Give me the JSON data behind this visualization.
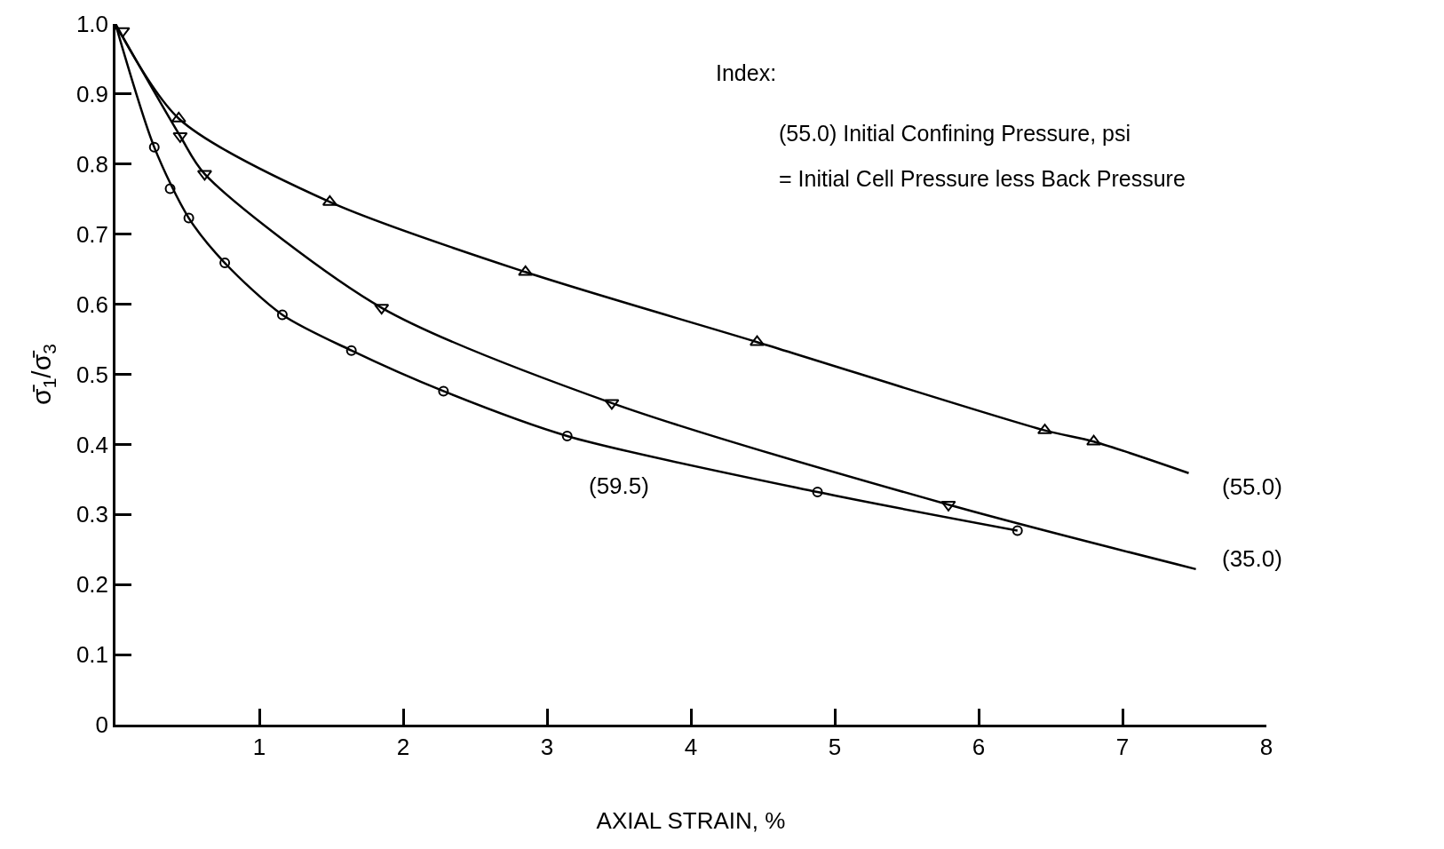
{
  "chart_data": {
    "type": "line",
    "xlabel": "AXIAL STRAIN, %",
    "ylabel": "σ̄$_{1}$/σ̄$_{3}$",
    "xlim": [
      0,
      8
    ],
    "xticks": [
      {
        "value": 0,
        "label": null
      },
      1,
      2,
      3,
      4,
      5,
      6,
      7,
      8
    ],
    "ylim": [
      0,
      1.0
    ],
    "yticks": [
      0,
      0.1,
      0.2,
      0.3,
      0.4,
      0.5,
      0.6,
      0.7,
      0.8,
      0.9,
      {
        "value": 1.0,
        "label": "1.0"
      }
    ],
    "series": [
      {
        "color": "#000000",
        "x": [
          0,
          0.27,
          0.51,
          0.76,
          1.16,
          1.64,
          2.28,
          3.14,
          4.88,
          6.27
        ],
        "values": [
          1.0,
          0.824,
          0.723,
          0.659,
          0.585,
          0.534,
          0.476,
          0.412,
          0.332,
          0.277
        ]
      },
      {
        "type": "scatter",
        "marker": "circle",
        "color": "#000000",
        "x": [
          0.27,
          0.38,
          0.51,
          0.76,
          1.16,
          1.64,
          2.28,
          3.14,
          4.88,
          6.27
        ],
        "values": [
          0.824,
          0.765,
          0.723,
          0.659,
          0.585,
          0.534,
          0.476,
          0.412,
          0.332,
          0.277
        ]
      },
      {
        "color": "#000000",
        "x": [
          0,
          0.45,
          0.62,
          1.85,
          3.45,
          5.79,
          7.51
        ],
        "values": [
          1.0,
          0.84,
          0.786,
          0.595,
          0.459,
          0.314,
          0.222
        ]
      },
      {
        "type": "scatter",
        "marker": "triangle-down",
        "color": "#000000",
        "x": [
          0.05,
          0.45,
          0.62,
          1.85,
          3.45,
          5.79
        ],
        "values": [
          0.99,
          0.84,
          0.786,
          0.595,
          0.459,
          0.314
        ]
      },
      {
        "color": "#000000",
        "x": [
          0,
          0.44,
          1.49,
          2.85,
          4.46,
          6.46,
          6.8,
          7.46
        ],
        "values": [
          1.0,
          0.865,
          0.746,
          0.646,
          0.546,
          0.42,
          0.404,
          0.359
        ]
      },
      {
        "type": "scatter",
        "marker": "triangle",
        "color": "#000000",
        "x": [
          0.44,
          1.49,
          2.85,
          4.46,
          6.46,
          6.8
        ],
        "values": [
          0.865,
          0.746,
          0.646,
          0.546,
          0.42,
          0.404
        ]
      }
    ],
    "annotations": [
      "(55.0)",
      "(35.0)",
      "(59.5)",
      "Index:",
      "(55.0) Initial Confining Pressure, psi",
      "= Initial Cell Pressure less Back Pressure"
    ]
  }
}
